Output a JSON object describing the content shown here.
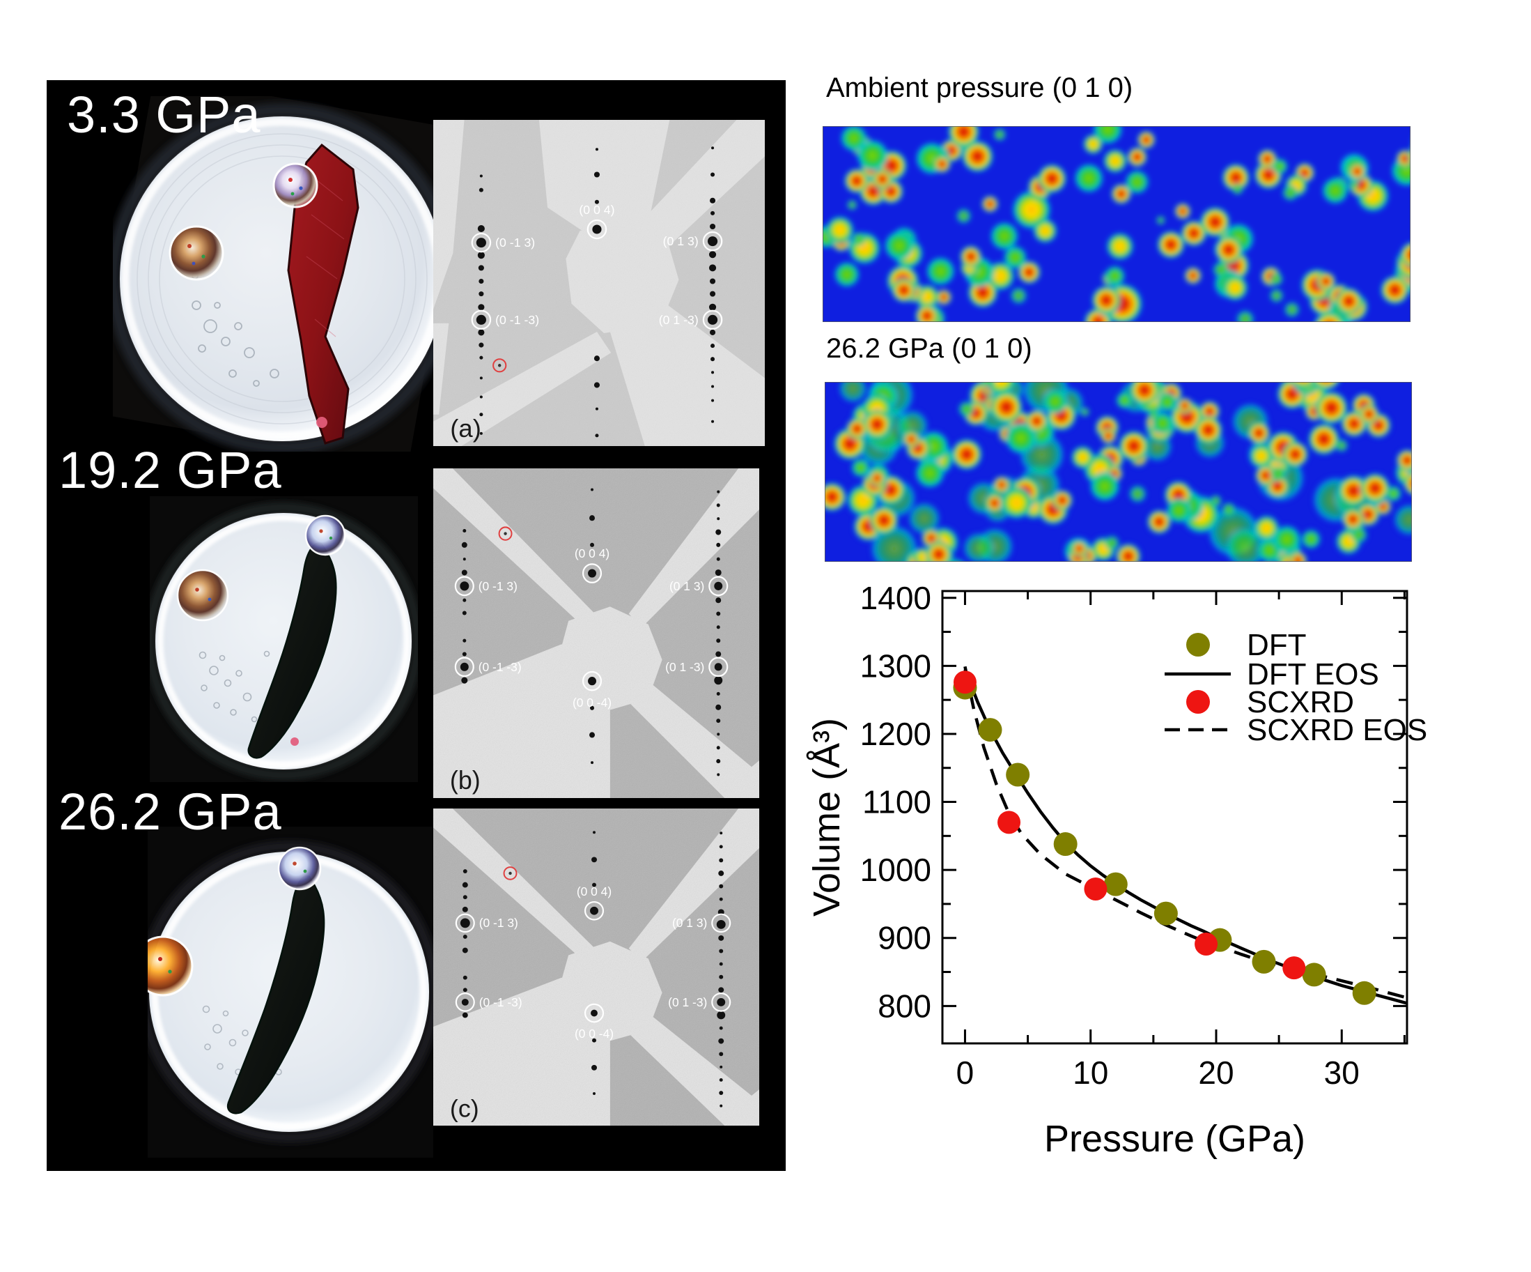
{
  "page": {
    "background": "#ffffff",
    "panel_background": "#000000"
  },
  "left_panel": {
    "samples": [
      {
        "pressure_label": "3.3 GPa",
        "diffraction_letter": "(a)",
        "diffraction_labels": {
          "top_center": "(0 0 4)",
          "left_upper": "(0 -1 3)",
          "right_upper": "(0 1 3)",
          "left_lower": "(0 -1 -3)",
          "right_lower": "(0 1 -3)"
        }
      },
      {
        "pressure_label": "19.2 GPa",
        "diffraction_letter": "(b)",
        "diffraction_labels": {
          "top_center": "(0 0 4)",
          "left_upper": "(0 -1 3)",
          "right_upper": "(0 1 3)",
          "left_lower": "(0 -1 -3)",
          "right_lower": "(0 1 -3)",
          "bottom_center": "(0 0 -4)"
        }
      },
      {
        "pressure_label": "26.2 GPa",
        "diffraction_letter": "(c)",
        "diffraction_labels": {
          "top_center": "(0 0 4)",
          "left_upper": "(0 -1 3)",
          "right_upper": "(0 1 3)",
          "left_lower": "(0 -1 -3)",
          "right_lower": "(0 1 -3)",
          "bottom_center": "(0 0 -4)"
        }
      }
    ]
  },
  "density_maps": [
    {
      "title": "Ambient pressure (0 1 0)",
      "colormap": "jet",
      "palette": [
        "#0f1fe0",
        "#00d8e8",
        "#2cc81e",
        "#ffe000",
        "#ff8c00",
        "#d50d00"
      ]
    },
    {
      "title": "26.2 GPa (0 1 0)",
      "colormap": "jet",
      "palette": [
        "#0f1fe0",
        "#00d8e8",
        "#2cc81e",
        "#ffe000",
        "#ff8c00",
        "#d50d00"
      ]
    }
  ],
  "chart_data": {
    "type": "scatter",
    "title": "",
    "xlabel": "Pressure (GPa)",
    "ylabel": "Volume (Å³)",
    "xlim": [
      -1.8,
      35.2
    ],
    "ylim": [
      745,
      1410
    ],
    "xticks": [
      0,
      10,
      20,
      30
    ],
    "xticks_minor": [
      5,
      15,
      25,
      35
    ],
    "yticks": [
      800,
      900,
      1000,
      1100,
      1200,
      1300,
      1400
    ],
    "yticks_minor": [
      850,
      950,
      1050,
      1150,
      1250,
      1350
    ],
    "grid": false,
    "legend_position": "upper-right-inside",
    "series": [
      {
        "name": "DFT",
        "kind": "scatter",
        "color": "#7f7f00",
        "points": [
          [
            0,
            1268
          ],
          [
            2,
            1206
          ],
          [
            4.2,
            1140
          ],
          [
            8,
            1038
          ],
          [
            12,
            979
          ],
          [
            16,
            936
          ],
          [
            20.3,
            897
          ],
          [
            23.8,
            865
          ],
          [
            27.8,
            846
          ],
          [
            31.8,
            819
          ]
        ]
      },
      {
        "name": "DFT EOS",
        "kind": "line",
        "style": "solid",
        "color": "#000000",
        "points": [
          [
            0,
            1295
          ],
          [
            1,
            1247
          ],
          [
            2,
            1206
          ],
          [
            3,
            1172
          ],
          [
            4,
            1142
          ],
          [
            5,
            1113
          ],
          [
            6,
            1086
          ],
          [
            7,
            1062
          ],
          [
            8,
            1040
          ],
          [
            9,
            1022
          ],
          [
            10,
            1006
          ],
          [
            11,
            992
          ],
          [
            12,
            979
          ],
          [
            13,
            967
          ],
          [
            14,
            956
          ],
          [
            15,
            946
          ],
          [
            16,
            936
          ],
          [
            17,
            927
          ],
          [
            18,
            918
          ],
          [
            19,
            910
          ],
          [
            20,
            901
          ],
          [
            21,
            893
          ],
          [
            22,
            885
          ],
          [
            23,
            877
          ],
          [
            24,
            869
          ],
          [
            25,
            862
          ],
          [
            26,
            855
          ],
          [
            27,
            848
          ],
          [
            28,
            842
          ],
          [
            29,
            836
          ],
          [
            30,
            830
          ],
          [
            31,
            825
          ],
          [
            32,
            820
          ],
          [
            33,
            815
          ],
          [
            34,
            810
          ],
          [
            35.2,
            804
          ]
        ]
      },
      {
        "name": "SCXRD",
        "kind": "scatter",
        "color": "#ee1512",
        "points": [
          [
            0,
            1276
          ],
          [
            3.5,
            1070
          ],
          [
            10.4,
            972
          ],
          [
            19.2,
            891
          ],
          [
            26.2,
            856
          ]
        ]
      },
      {
        "name": "SCXRD EOS",
        "kind": "line",
        "style": "dashed",
        "color": "#000000",
        "points": [
          [
            0,
            1299
          ],
          [
            0.7,
            1236
          ],
          [
            1.5,
            1180
          ],
          [
            2.5,
            1126
          ],
          [
            3.5,
            1083
          ],
          [
            4.5,
            1053
          ],
          [
            6,
            1023
          ],
          [
            8,
            994
          ],
          [
            10,
            975
          ],
          [
            12,
            956
          ],
          [
            14,
            937
          ],
          [
            16,
            919
          ],
          [
            18,
            903
          ],
          [
            19.2,
            894
          ],
          [
            20,
            889
          ],
          [
            22,
            876
          ],
          [
            24,
            864
          ],
          [
            26,
            855
          ],
          [
            28,
            846
          ],
          [
            30,
            837
          ],
          [
            32,
            828
          ],
          [
            34,
            818
          ],
          [
            35.2,
            812
          ]
        ]
      }
    ],
    "legend": [
      {
        "label": "DFT",
        "swatch": "dot",
        "color": "#7f7f00"
      },
      {
        "label": "DFT EOS",
        "swatch": "solid-line",
        "color": "#000000"
      },
      {
        "label": "SCXRD",
        "swatch": "dot",
        "color": "#ee1512"
      },
      {
        "label": "SCXRD EOS",
        "swatch": "dashed-line",
        "color": "#000000"
      }
    ]
  }
}
